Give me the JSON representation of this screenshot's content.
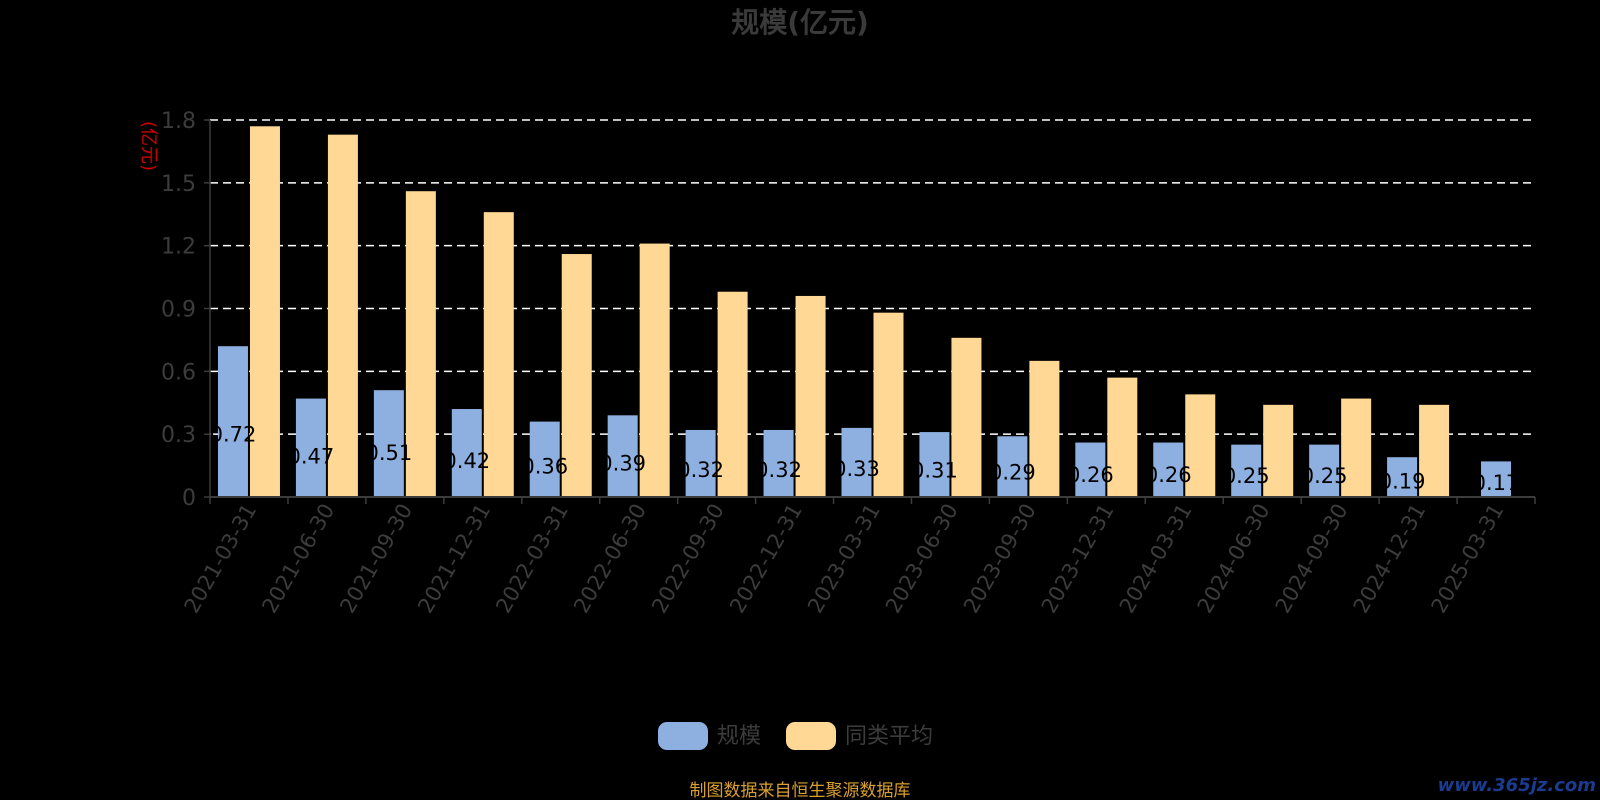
{
  "chart_data": {
    "type": "bar",
    "title": "规模(亿元)",
    "ylabel": "(亿元)",
    "xlabel": "",
    "ylim": [
      0,
      1.8
    ],
    "yticks": [
      0,
      0.3,
      0.6,
      0.9,
      1.2,
      1.5,
      1.8
    ],
    "ytick_labels": [
      "0",
      "0.3",
      "0.6",
      "0.9",
      "1.2",
      "1.5",
      "1.8"
    ],
    "grid": true,
    "legend_position": "bottom",
    "categories": [
      "2021-03-31",
      "2021-06-30",
      "2021-09-30",
      "2021-12-31",
      "2022-03-31",
      "2022-06-30",
      "2022-09-30",
      "2022-12-31",
      "2023-03-31",
      "2023-06-30",
      "2023-09-30",
      "2023-12-31",
      "2024-03-31",
      "2024-06-30",
      "2024-09-30",
      "2024-12-31",
      "2025-03-31"
    ],
    "series": [
      {
        "name": "规模",
        "color": "#8eb0e0",
        "values": [
          0.72,
          0.47,
          0.51,
          0.42,
          0.36,
          0.39,
          0.32,
          0.32,
          0.33,
          0.31,
          0.29,
          0.26,
          0.26,
          0.25,
          0.25,
          0.19,
          0.17
        ],
        "value_labels": [
          "0.72",
          "0.47",
          "0.51",
          "0.42",
          "0.36",
          "0.39",
          "0.32",
          "0.32",
          "0.33",
          "0.31",
          "0.29",
          "0.26",
          "0.26",
          "0.25",
          "0.25",
          "0.19",
          "0.17"
        ]
      },
      {
        "name": "同类平均",
        "color": "#ffd896",
        "values": [
          1.77,
          1.73,
          1.46,
          1.36,
          1.16,
          1.21,
          0.98,
          0.96,
          0.88,
          0.76,
          0.65,
          0.57,
          0.49,
          0.44,
          0.47,
          0.44,
          null
        ]
      }
    ]
  },
  "footer": {
    "source": "制图数据来自恒生聚源数据库",
    "watermark": "www.365jz.com"
  }
}
